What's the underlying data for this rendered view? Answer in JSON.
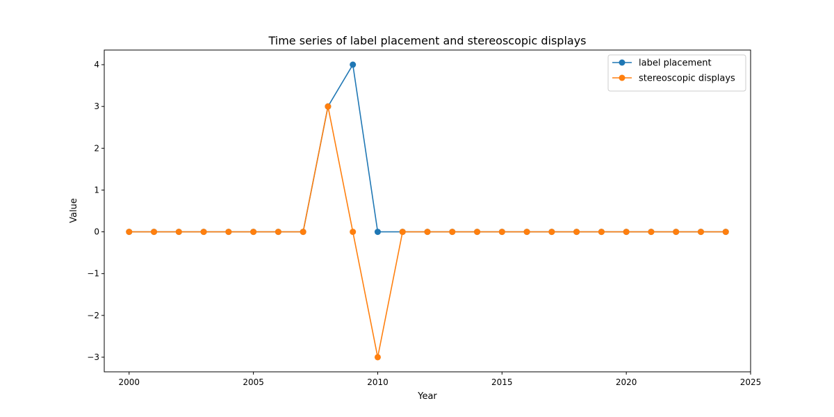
{
  "chart_data": {
    "type": "line",
    "title": "Time series of label placement and stereoscopic displays",
    "xlabel": "Year",
    "ylabel": "Value",
    "xlim": [
      1999,
      2025
    ],
    "ylim": [
      -3.35,
      4.35
    ],
    "xticks": [
      2000,
      2005,
      2010,
      2015,
      2020,
      2025
    ],
    "yticks": [
      -3,
      -2,
      -1,
      0,
      1,
      2,
      3,
      4
    ],
    "ytick_labels": [
      "−3",
      "−2",
      "−1",
      "0",
      "1",
      "2",
      "3",
      "4"
    ],
    "legend_position": "upper-right",
    "grid": false,
    "x": [
      2000,
      2001,
      2002,
      2003,
      2004,
      2005,
      2006,
      2007,
      2008,
      2009,
      2010,
      2011,
      2012,
      2013,
      2014,
      2015,
      2016,
      2017,
      2018,
      2019,
      2020,
      2021,
      2022,
      2023,
      2024
    ],
    "series": [
      {
        "name": "label placement",
        "color": "#1f77b4",
        "values": [
          0,
          0,
          0,
          0,
          0,
          0,
          0,
          0,
          3,
          4,
          0,
          0,
          0,
          0,
          0,
          0,
          0,
          0,
          0,
          0,
          0,
          0,
          0,
          0,
          0
        ]
      },
      {
        "name": "stereoscopic displays",
        "color": "#ff7f0e",
        "values": [
          0,
          0,
          0,
          0,
          0,
          0,
          0,
          0,
          3,
          0,
          -3,
          0,
          0,
          0,
          0,
          0,
          0,
          0,
          0,
          0,
          0,
          0,
          0,
          0,
          0
        ]
      }
    ]
  }
}
